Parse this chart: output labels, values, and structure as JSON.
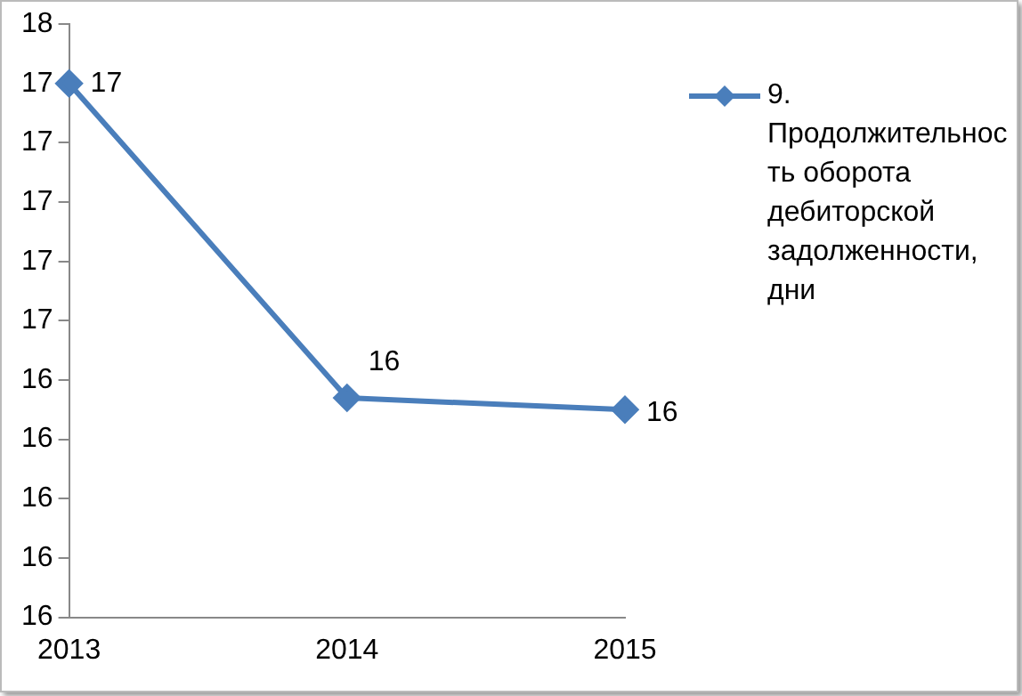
{
  "chart_data": {
    "type": "line",
    "categories": [
      "2013",
      "2014",
      "2015"
    ],
    "series": [
      {
        "name": "9. Продолжительность оборота дебиторской задолженности, дни",
        "color": "#4a7ebb",
        "values": [
          17.4,
          16.34,
          16.3
        ],
        "value_labels": [
          "17",
          "16",
          "16"
        ]
      }
    ],
    "ylim": [
      15.6,
      17.6
    ],
    "yticks": [
      {
        "value": 15.6,
        "label": "16"
      },
      {
        "value": 15.8,
        "label": "16"
      },
      {
        "value": 16.0,
        "label": "16"
      },
      {
        "value": 16.2,
        "label": "16"
      },
      {
        "value": 16.4,
        "label": "16"
      },
      {
        "value": 16.6,
        "label": "17"
      },
      {
        "value": 16.8,
        "label": "17"
      },
      {
        "value": 17.0,
        "label": "17"
      },
      {
        "value": 17.2,
        "label": "17"
      },
      {
        "value": 17.4,
        "label": "17"
      },
      {
        "value": 17.6,
        "label": "18"
      }
    ],
    "grid": false,
    "legend": "right",
    "marker": "diamond",
    "line_style": "solid"
  }
}
